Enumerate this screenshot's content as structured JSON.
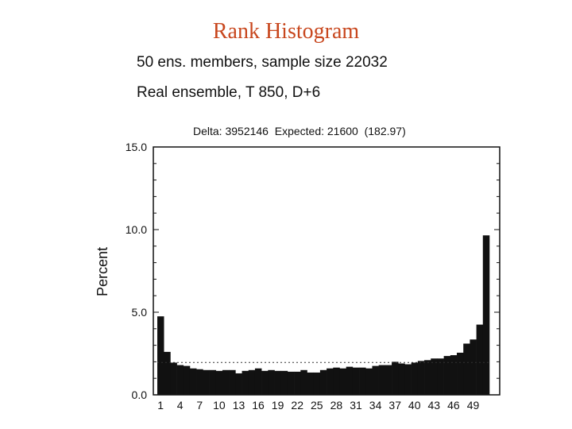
{
  "page": {
    "title": "Rank Histogram",
    "subtitle_line1": "50 ens. members, sample size 22032",
    "subtitle_line2": "Real ensemble, T 850, D+6",
    "stats_line": "Delta: 3952146  Expected: 21600  (182.97)"
  },
  "chart_data": {
    "type": "bar",
    "ylabel": "Percent",
    "ylim": [
      0,
      15
    ],
    "yticks": [
      "0.0",
      "5.0",
      "10.0",
      "15.0"
    ],
    "ytick_values": [
      0,
      5,
      10,
      15
    ],
    "xtick_labels": [
      "1",
      "4",
      "7",
      "10",
      "13",
      "16",
      "19",
      "22",
      "25",
      "28",
      "31",
      "34",
      "37",
      "40",
      "43",
      "46",
      "49"
    ],
    "xtick_ranks": [
      1,
      4,
      7,
      10,
      13,
      16,
      19,
      22,
      25,
      28,
      31,
      34,
      37,
      40,
      43,
      46,
      49
    ],
    "expected_value": 1.96,
    "categories": [
      1,
      2,
      3,
      4,
      5,
      6,
      7,
      8,
      9,
      10,
      11,
      12,
      13,
      14,
      15,
      16,
      17,
      18,
      19,
      20,
      21,
      22,
      23,
      24,
      25,
      26,
      27,
      28,
      29,
      30,
      31,
      32,
      33,
      34,
      35,
      36,
      37,
      38,
      39,
      40,
      41,
      42,
      43,
      44,
      45,
      46,
      47,
      48,
      49,
      50,
      51
    ],
    "values": [
      4.75,
      2.6,
      1.95,
      1.8,
      1.75,
      1.6,
      1.55,
      1.5,
      1.5,
      1.45,
      1.5,
      1.5,
      1.3,
      1.45,
      1.5,
      1.6,
      1.45,
      1.5,
      1.45,
      1.45,
      1.4,
      1.4,
      1.5,
      1.35,
      1.35,
      1.5,
      1.6,
      1.65,
      1.6,
      1.7,
      1.65,
      1.65,
      1.6,
      1.75,
      1.8,
      1.8,
      2.0,
      1.9,
      1.85,
      1.95,
      2.05,
      2.1,
      2.2,
      2.2,
      2.35,
      2.4,
      2.55,
      3.1,
      3.35,
      4.25,
      9.65
    ],
    "grid": false,
    "legend": "none"
  }
}
